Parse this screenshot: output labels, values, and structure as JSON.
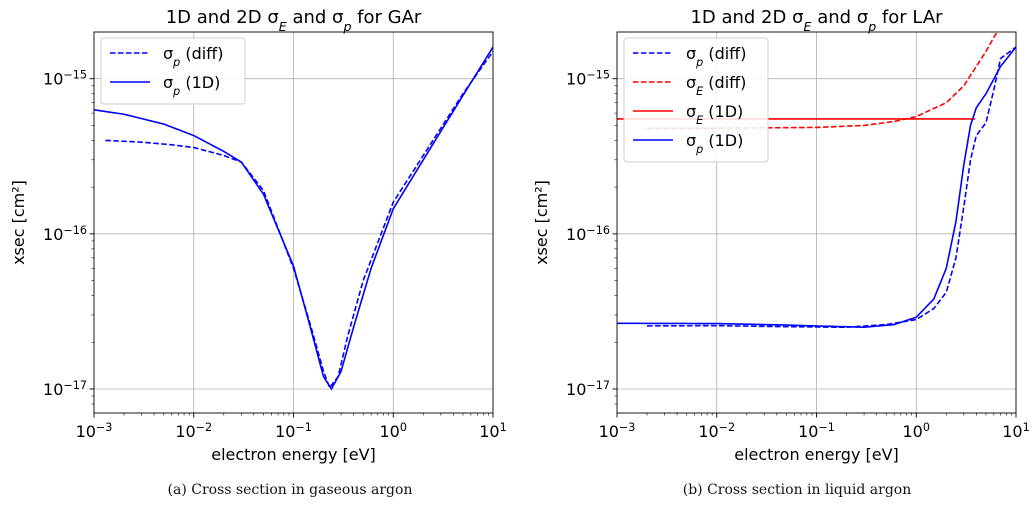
{
  "chart_data": [
    {
      "type": "line",
      "title": "1D and 2D σ_E and σ_p for GAr",
      "xlabel": "electron energy [eV]",
      "ylabel": "xsec [cm²]",
      "xscale": "log",
      "yscale": "log",
      "xlim": [
        0.001,
        10
      ],
      "ylim": [
        7e-18,
        2e-15
      ],
      "grid": true,
      "legend_position": "top-left",
      "x_ticks": [
        "10^-3",
        "10^-2",
        "10^-1",
        "10^0",
        "10^1"
      ],
      "y_ticks": [
        "10^-17",
        "10^-16",
        "10^-15"
      ],
      "caption": "(a) Cross section in gaseous argon",
      "series": [
        {
          "name": "σ_p (diff)",
          "color": "#0000ff",
          "style": "dashed",
          "points": [
            [
              0.0013,
              4e-16
            ],
            [
              0.003,
              3.9e-16
            ],
            [
              0.006,
              3.75e-16
            ],
            [
              0.01,
              3.6e-16
            ],
            [
              0.02,
              3.2e-16
            ],
            [
              0.03,
              2.9e-16
            ],
            [
              0.05,
              1.9e-16
            ],
            [
              0.1,
              6e-17
            ],
            [
              0.15,
              2.5e-17
            ],
            [
              0.2,
              1.3e-17
            ],
            [
              0.23,
              1.02e-17
            ],
            [
              0.28,
              1.2e-17
            ],
            [
              0.35,
              2.2e-17
            ],
            [
              0.5,
              5e-17
            ],
            [
              1,
              1.6e-16
            ],
            [
              2,
              3.2e-16
            ],
            [
              5,
              8e-16
            ],
            [
              10,
              1.5e-15
            ]
          ]
        },
        {
          "name": "σ_p (1D)",
          "color": "#0000ff",
          "style": "solid",
          "points": [
            [
              0.001,
              6.3e-16
            ],
            [
              0.002,
              5.9e-16
            ],
            [
              0.005,
              5.1e-16
            ],
            [
              0.01,
              4.3e-16
            ],
            [
              0.02,
              3.4e-16
            ],
            [
              0.03,
              2.9e-16
            ],
            [
              0.05,
              1.8e-16
            ],
            [
              0.1,
              6.2e-17
            ],
            [
              0.15,
              2.4e-17
            ],
            [
              0.2,
              1.2e-17
            ],
            [
              0.24,
              1e-17
            ],
            [
              0.3,
              1.3e-17
            ],
            [
              0.4,
              2.5e-17
            ],
            [
              0.6,
              6e-17
            ],
            [
              1,
              1.45e-16
            ],
            [
              2,
              3e-16
            ],
            [
              5,
              7.8e-16
            ],
            [
              10,
              1.6e-15
            ]
          ]
        }
      ]
    },
    {
      "type": "line",
      "title": "1D and 2D σ_E and σ_p for LAr",
      "xlabel": "electron energy [eV]",
      "ylabel": "xsec [cm²]",
      "xscale": "log",
      "yscale": "log",
      "xlim": [
        0.001,
        10
      ],
      "ylim": [
        7e-18,
        2e-15
      ],
      "grid": true,
      "legend_position": "top-left",
      "x_ticks": [
        "10^-3",
        "10^-2",
        "10^-1",
        "10^0",
        "10^1"
      ],
      "y_ticks": [
        "10^-17",
        "10^-16",
        "10^-15"
      ],
      "caption": "(b) Cross section in liquid argon",
      "series": [
        {
          "name": "σ_p (diff)",
          "color": "#0000ff",
          "style": "dashed",
          "points": [
            [
              0.002,
              2.55e-17
            ],
            [
              0.01,
              2.56e-17
            ],
            [
              0.05,
              2.52e-17
            ],
            [
              0.2,
              2.5e-17
            ],
            [
              0.5,
              2.6e-17
            ],
            [
              1,
              2.8e-17
            ],
            [
              1.5,
              3.3e-17
            ],
            [
              2,
              4.2e-17
            ],
            [
              2.5,
              7e-17
            ],
            [
              3,
              1.5e-16
            ],
            [
              3.5,
              3e-16
            ],
            [
              4,
              4.3e-16
            ],
            [
              5,
              5.2e-16
            ],
            [
              6,
              8.5e-16
            ],
            [
              7,
              1.35e-15
            ],
            [
              10,
              1.6e-15
            ]
          ]
        },
        {
          "name": "σ_E (diff)",
          "color": "#ff0000",
          "style": "dashed",
          "points": [
            [
              0.002,
              4.8e-16
            ],
            [
              0.01,
              4.8e-16
            ],
            [
              0.1,
              4.85e-16
            ],
            [
              0.3,
              5e-16
            ],
            [
              0.6,
              5.3e-16
            ],
            [
              1,
              5.7e-16
            ],
            [
              2,
              7e-16
            ],
            [
              3,
              9e-16
            ],
            [
              4,
              1.2e-15
            ],
            [
              5,
              1.5e-15
            ],
            [
              6,
              1.85e-15
            ],
            [
              6.8,
              2.1e-15
            ]
          ]
        },
        {
          "name": "σ_E (1D)",
          "color": "#ff0000",
          "style": "solid",
          "points": [
            [
              0.001,
              5.5e-16
            ],
            [
              3.9,
              5.5e-16
            ]
          ]
        },
        {
          "name": "σ_p (1D)",
          "color": "#0000ff",
          "style": "solid",
          "points": [
            [
              0.001,
              2.65e-17
            ],
            [
              0.01,
              2.64e-17
            ],
            [
              0.05,
              2.58e-17
            ],
            [
              0.3,
              2.5e-17
            ],
            [
              0.6,
              2.6e-17
            ],
            [
              1,
              2.9e-17
            ],
            [
              1.5,
              3.8e-17
            ],
            [
              2,
              6e-17
            ],
            [
              2.5,
              1.2e-16
            ],
            [
              3,
              2.8e-16
            ],
            [
              3.5,
              5e-16
            ],
            [
              4,
              6.5e-16
            ],
            [
              5,
              8e-16
            ],
            [
              7,
              1.2e-15
            ],
            [
              10,
              1.6e-15
            ]
          ]
        }
      ]
    }
  ]
}
